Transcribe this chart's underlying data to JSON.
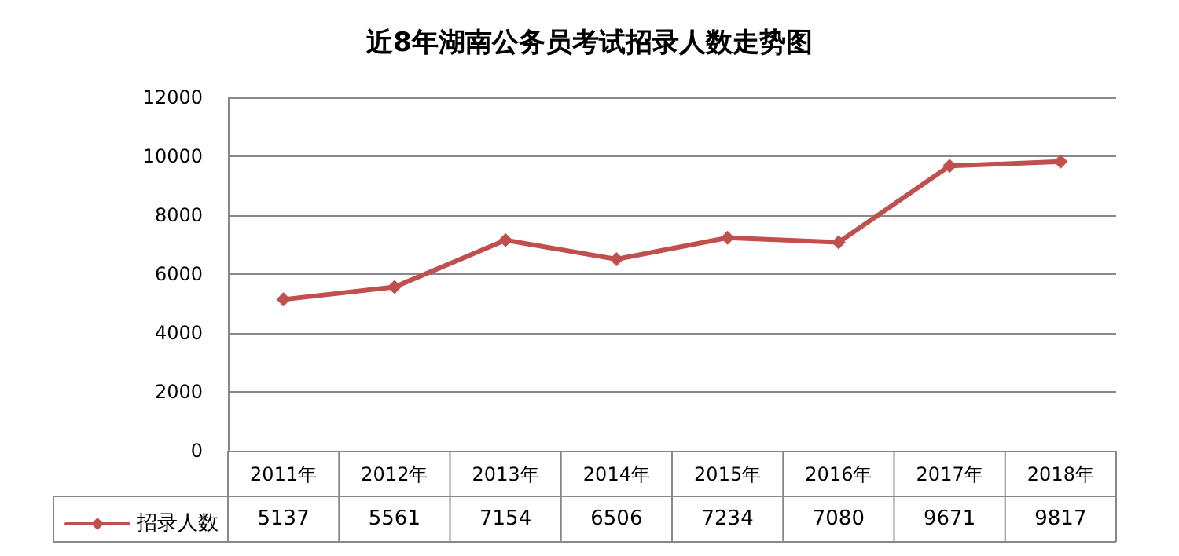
{
  "chart_data": {
    "type": "line",
    "title": "近8年湖南公务员考试招录人数走势图",
    "categories": [
      "2011年",
      "2012年",
      "2013年",
      "2014年",
      "2015年",
      "2016年",
      "2017年",
      "2018年"
    ],
    "series": [
      {
        "name": "招录人数",
        "color": "#c0504d",
        "values": [
          5137,
          5561,
          7154,
          6506,
          7234,
          7080,
          9671,
          9817
        ]
      }
    ],
    "ylim": [
      0,
      12000
    ],
    "yticks": [
      0,
      2000,
      4000,
      6000,
      8000,
      10000,
      12000
    ],
    "grid": "y",
    "marker": "diamond",
    "line_style": "solid",
    "data_labels": true,
    "legend": "bottom left"
  }
}
